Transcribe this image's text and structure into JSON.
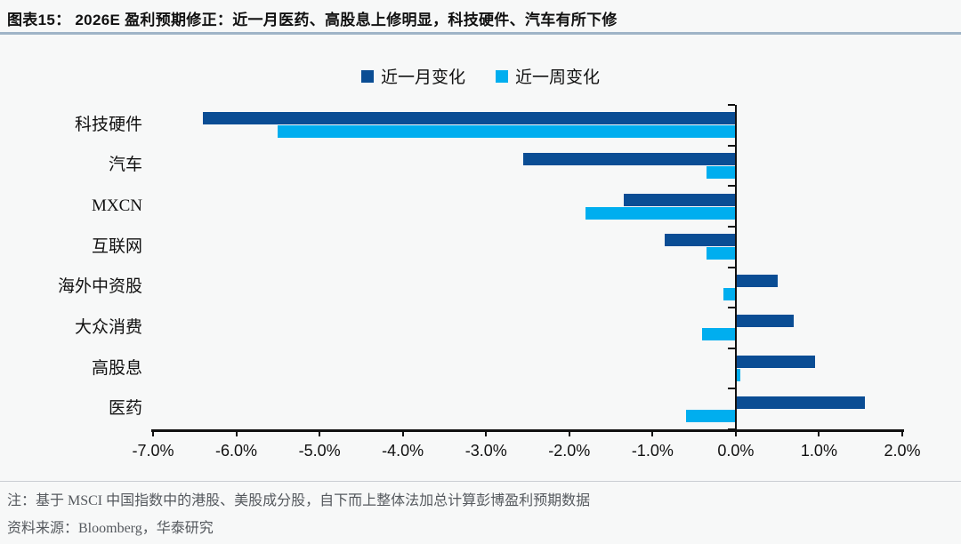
{
  "header": {
    "title": "图表15：  2026E 盈利预期修正：近一月医药、高股息上修明显，科技硬件、汽车有所下修"
  },
  "legend": {
    "items": [
      {
        "label": "近一月变化",
        "color": "#0a4d94"
      },
      {
        "label": "近一周变化",
        "color": "#00aeef"
      }
    ]
  },
  "chart_data": {
    "type": "bar",
    "orientation": "horizontal",
    "unit": "%",
    "categories": [
      "科技硬件",
      "汽车",
      "MXCN",
      "互联网",
      "海外中资股",
      "大众消费",
      "高股息",
      "医药"
    ],
    "series": [
      {
        "name": "近一月变化",
        "color": "#0a4d94",
        "values": [
          -6.4,
          -2.55,
          -1.35,
          -0.85,
          0.5,
          0.7,
          0.95,
          1.55
        ]
      },
      {
        "name": "近一周变化",
        "color": "#00aeef",
        "values": [
          -5.5,
          -0.35,
          -1.8,
          -0.35,
          -0.15,
          -0.4,
          0.05,
          -0.6
        ]
      }
    ],
    "xlim": [
      -7,
      2
    ],
    "x_tick_values": [
      -7,
      -6,
      -5,
      -4,
      -3,
      -2,
      -1,
      0,
      1,
      2
    ],
    "x_tick_labels": [
      "-7.0%",
      "-6.0%",
      "-5.0%",
      "-4.0%",
      "-3.0%",
      "-2.0%",
      "-1.0%",
      "0.0%",
      "1.0%",
      "2.0%"
    ],
    "grid": false,
    "legend_position": "top",
    "zero_axis_line": true
  },
  "footnotes": {
    "note": "注：基于 MSCI 中国指数中的港股、美股成分股，自下而上整体法加总计算彭博盈利预期数据",
    "source": "资料来源：Bloomberg，华泰研究"
  }
}
